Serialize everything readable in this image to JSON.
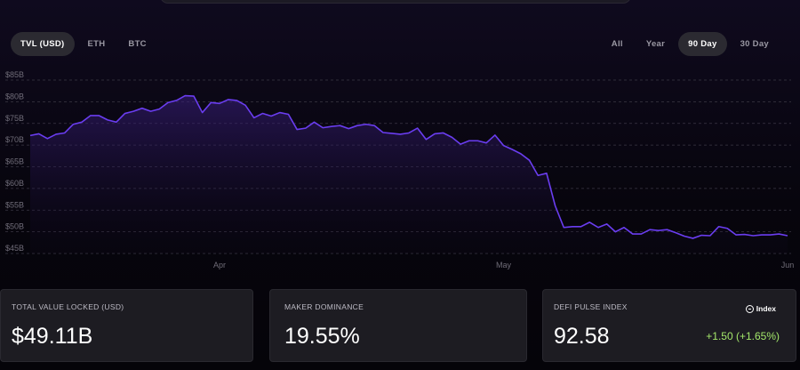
{
  "tabs_left": [
    {
      "label": "TVL (USD)",
      "active": true
    },
    {
      "label": "ETH",
      "active": false
    },
    {
      "label": "BTC",
      "active": false
    }
  ],
  "tabs_right": [
    {
      "label": "All",
      "active": false
    },
    {
      "label": "Year",
      "active": false
    },
    {
      "label": "90 Day",
      "active": true
    },
    {
      "label": "30 Day",
      "active": false
    }
  ],
  "chart_data": {
    "type": "area",
    "y_ticks": [
      "$85B",
      "$80B",
      "$75B",
      "$70B",
      "$65B",
      "$60B",
      "$55B",
      "$50B",
      "$45B"
    ],
    "x_ticks": [
      {
        "label": "Apr",
        "index": 22
      },
      {
        "label": "May",
        "index": 55
      },
      {
        "label": "Jun",
        "index": 88
      }
    ],
    "ylim": [
      45,
      85
    ],
    "grid": true,
    "line_color": "#6a3df0",
    "series": [
      {
        "values": [
          72.2,
          72.6,
          71.5,
          72.5,
          72.8,
          74.8,
          75.3,
          76.8,
          76.8,
          75.8,
          75.3,
          77.3,
          77.8,
          78.5,
          77.8,
          78.3,
          79.8,
          80.3,
          81.4,
          81.3,
          77.5,
          79.8,
          79.6,
          80.5,
          80.3,
          79.2,
          76.3,
          77.3,
          76.7,
          77.5,
          77.1,
          73.6,
          73.9,
          75.3,
          74.0,
          74.3,
          74.5,
          73.8,
          74.5,
          74.8,
          74.5,
          72.9,
          72.7,
          72.5,
          72.8,
          73.9,
          71.3,
          72.6,
          72.8,
          71.8,
          70.2,
          71.0,
          71.0,
          70.5,
          72.3,
          69.9,
          69.0,
          68.0,
          66.5,
          63.0,
          63.5,
          56.0,
          51.0,
          51.2,
          51.2,
          52.2,
          51.0,
          51.8,
          50.0,
          51.0,
          49.5,
          49.5,
          50.5,
          50.3,
          50.5,
          49.8,
          49.0,
          48.5,
          49.2,
          49.1,
          51.2,
          50.8,
          49.3,
          49.4,
          49.1,
          49.3,
          49.3,
          49.5,
          49.1
        ]
      }
    ]
  },
  "cards": [
    {
      "label": "TOTAL VALUE LOCKED (USD)",
      "value": "$49.11B"
    },
    {
      "label": "MAKER DOMINANCE",
      "value": "19.55%"
    },
    {
      "label": "DEFI PULSE INDEX",
      "value": "92.58",
      "badge": "Index",
      "change": "+1.50  (+1.65%)"
    }
  ]
}
